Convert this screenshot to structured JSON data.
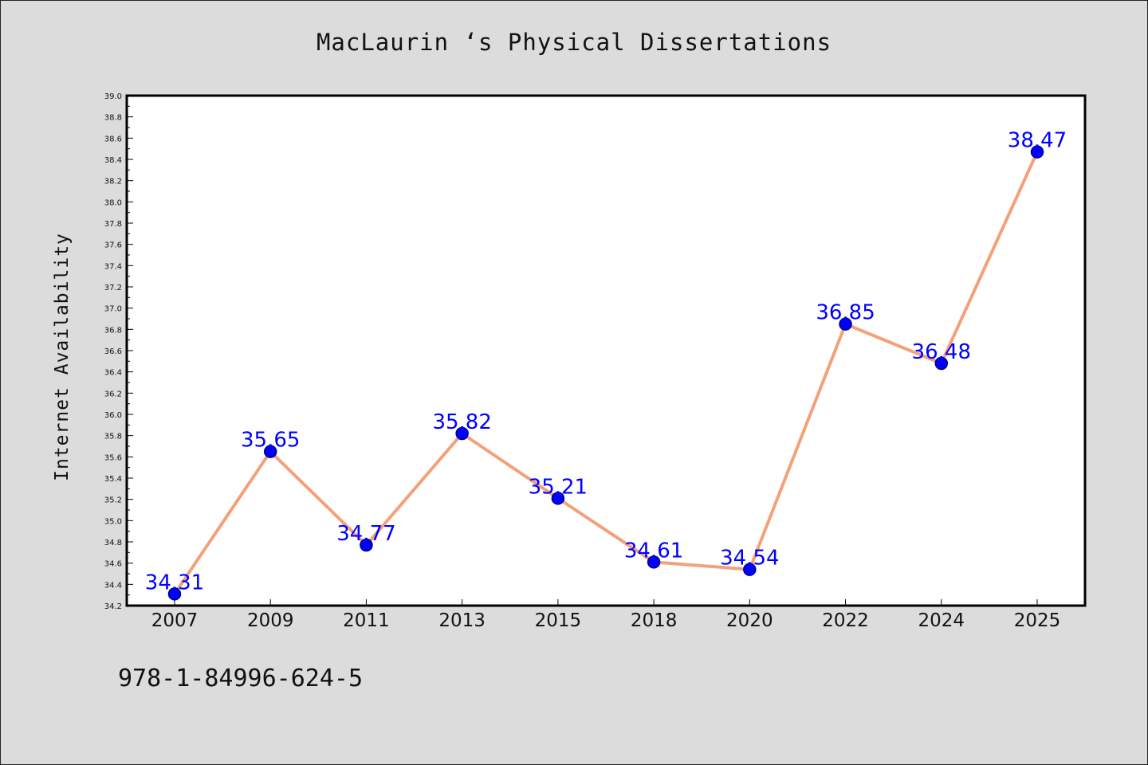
{
  "chart_data": {
    "type": "line",
    "title": "MacLaurin ‘s Physical Dissertations",
    "xlabel": "",
    "ylabel": "Internet Availability",
    "categories": [
      "2007",
      "2009",
      "2011",
      "2013",
      "2015",
      "2018",
      "2020",
      "2022",
      "2024",
      "2025"
    ],
    "series": [
      {
        "values": [
          34.31,
          35.65,
          34.77,
          35.82,
          35.21,
          34.61,
          34.54,
          36.85,
          36.48,
          38.47
        ],
        "data_labels": [
          "34.31",
          "35.65",
          "34.77",
          "35.82",
          "35.21",
          "34.61",
          "34.54",
          "36.85",
          "36.48",
          "38.47"
        ]
      }
    ],
    "ylim": [
      34.2,
      39.0
    ],
    "y_ticks": [
      "34.2",
      "34.4",
      "34.6",
      "34.8",
      "35.0",
      "35.2",
      "35.4",
      "35.6",
      "35.8",
      "36.0",
      "36.2",
      "36.4",
      "36.6",
      "36.8",
      "37.0",
      "37.2",
      "37.4",
      "37.6",
      "37.8",
      "38.0",
      "38.2",
      "38.4",
      "38.6",
      "38.8",
      "39.0"
    ],
    "grid": false,
    "colors": {
      "line": "#f4a07a",
      "marker": "#0000ff",
      "marker_edge": "#00008b",
      "data_label": "#0000ff",
      "background": "#dcdcdc",
      "plot_background": "#ffffff"
    }
  },
  "footer_text": "978-1-84996-624-5"
}
